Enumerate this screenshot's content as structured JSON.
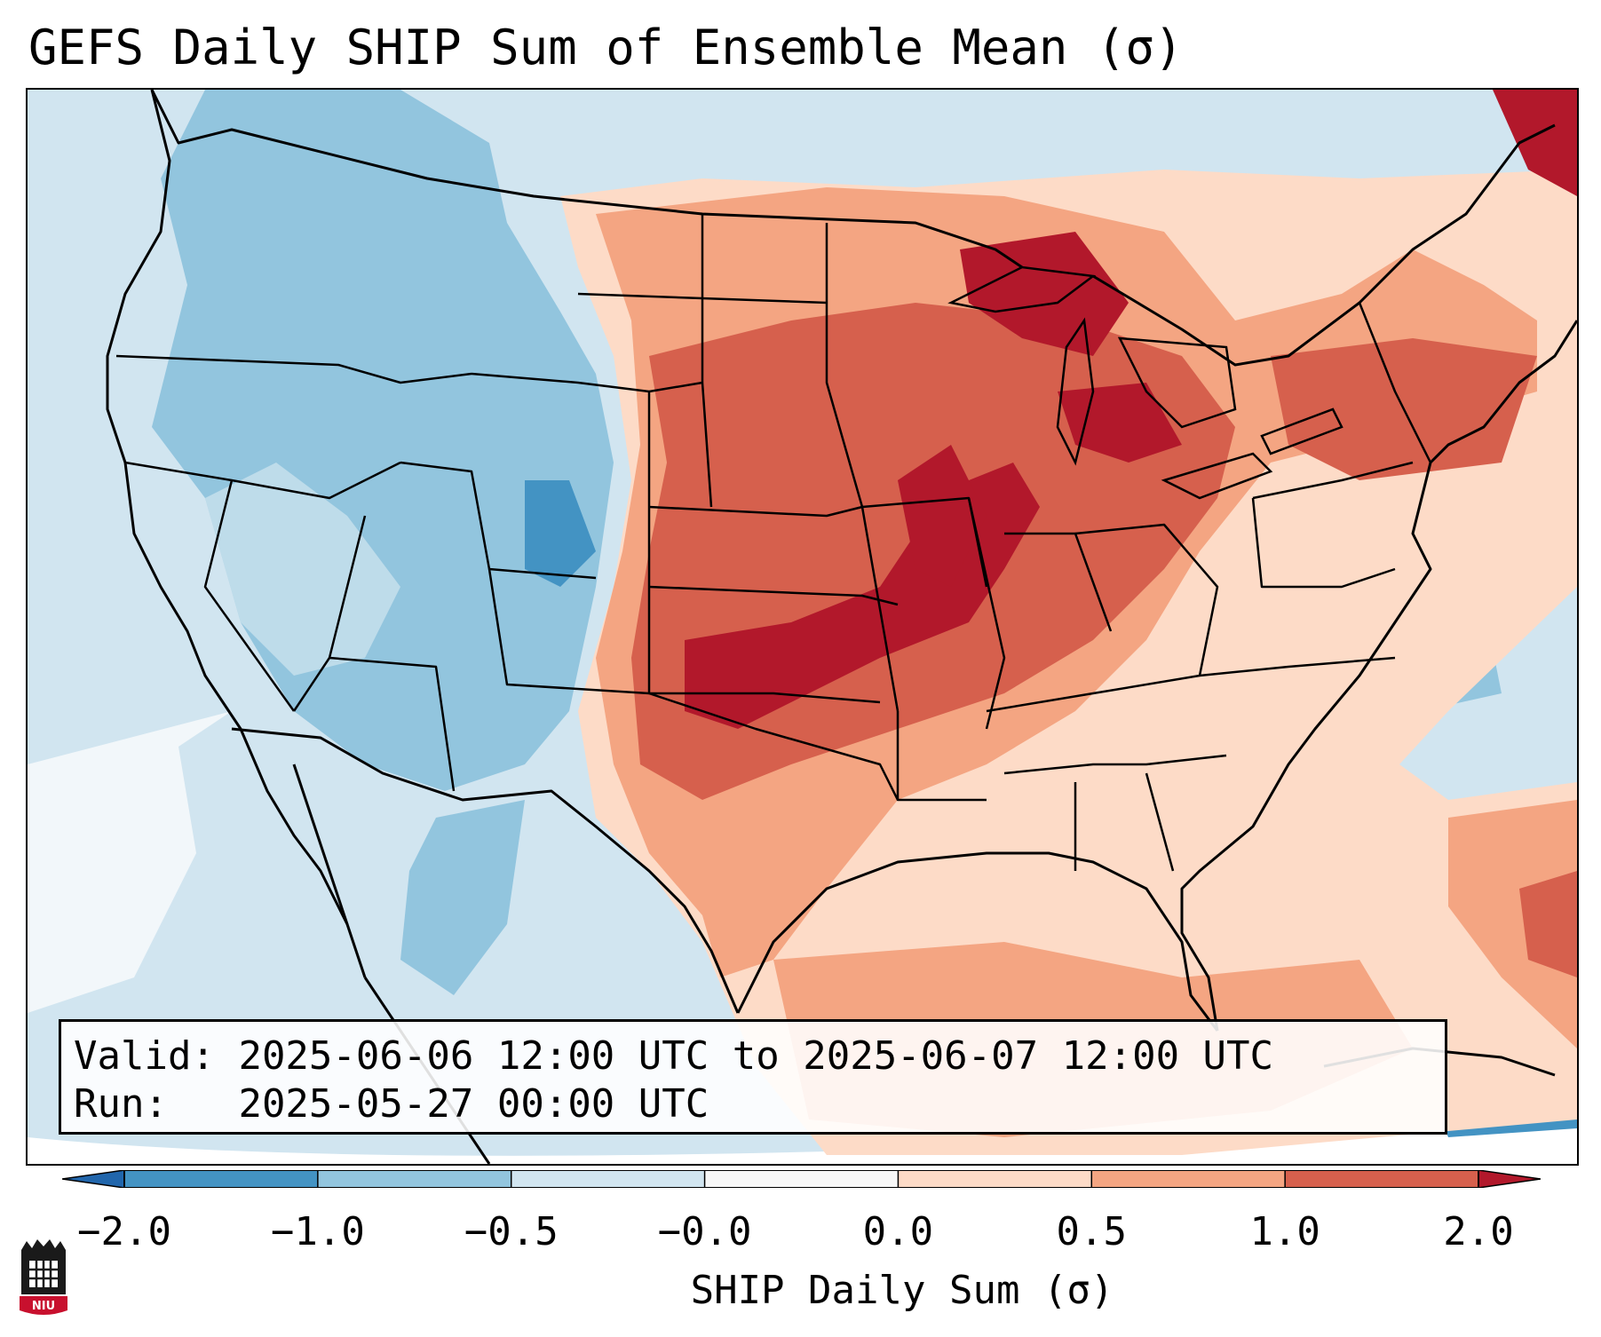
{
  "title": "GEFS Daily SHIP Sum of Ensemble Mean (σ)",
  "info": {
    "valid_label": "Valid:",
    "valid_value": "2025-06-06 12:00 UTC to 2025-06-07 12:00 UTC",
    "run_label": "Run:",
    "run_value": "2025-05-27 00:00 UTC"
  },
  "colorbar": {
    "label": "SHIP Daily Sum (σ)",
    "ticks": [
      "−2.0",
      "−1.0",
      "−0.5",
      "−0.0",
      "0.0",
      "0.5",
      "1.0",
      "2.0"
    ],
    "bins": [
      {
        "range": "< -2.0",
        "color": "#2166ac"
      },
      {
        "range": "-2.0 to -1.0",
        "color": "#4393c3"
      },
      {
        "range": "-1.0 to -0.5",
        "color": "#92c5de"
      },
      {
        "range": "-0.5 to -0.0",
        "color": "#d1e5f0"
      },
      {
        "range": "-0.0 to 0.0",
        "color": "#f7f7f7"
      },
      {
        "range": "0.0 to 0.5",
        "color": "#fddbc7"
      },
      {
        "range": "0.5 to 1.0",
        "color": "#f4a582"
      },
      {
        "range": "1.0 to 2.0",
        "color": "#d6604d"
      },
      {
        "range": "> 2.0",
        "color": "#b2182b"
      }
    ]
  },
  "logo": {
    "text": "NIU",
    "colors": {
      "body": "#1a1a1a",
      "accent": "#c8102e"
    }
  },
  "colors": {
    "ocean_neutral": "#d1e5f0",
    "state_lines": "#000000"
  }
}
